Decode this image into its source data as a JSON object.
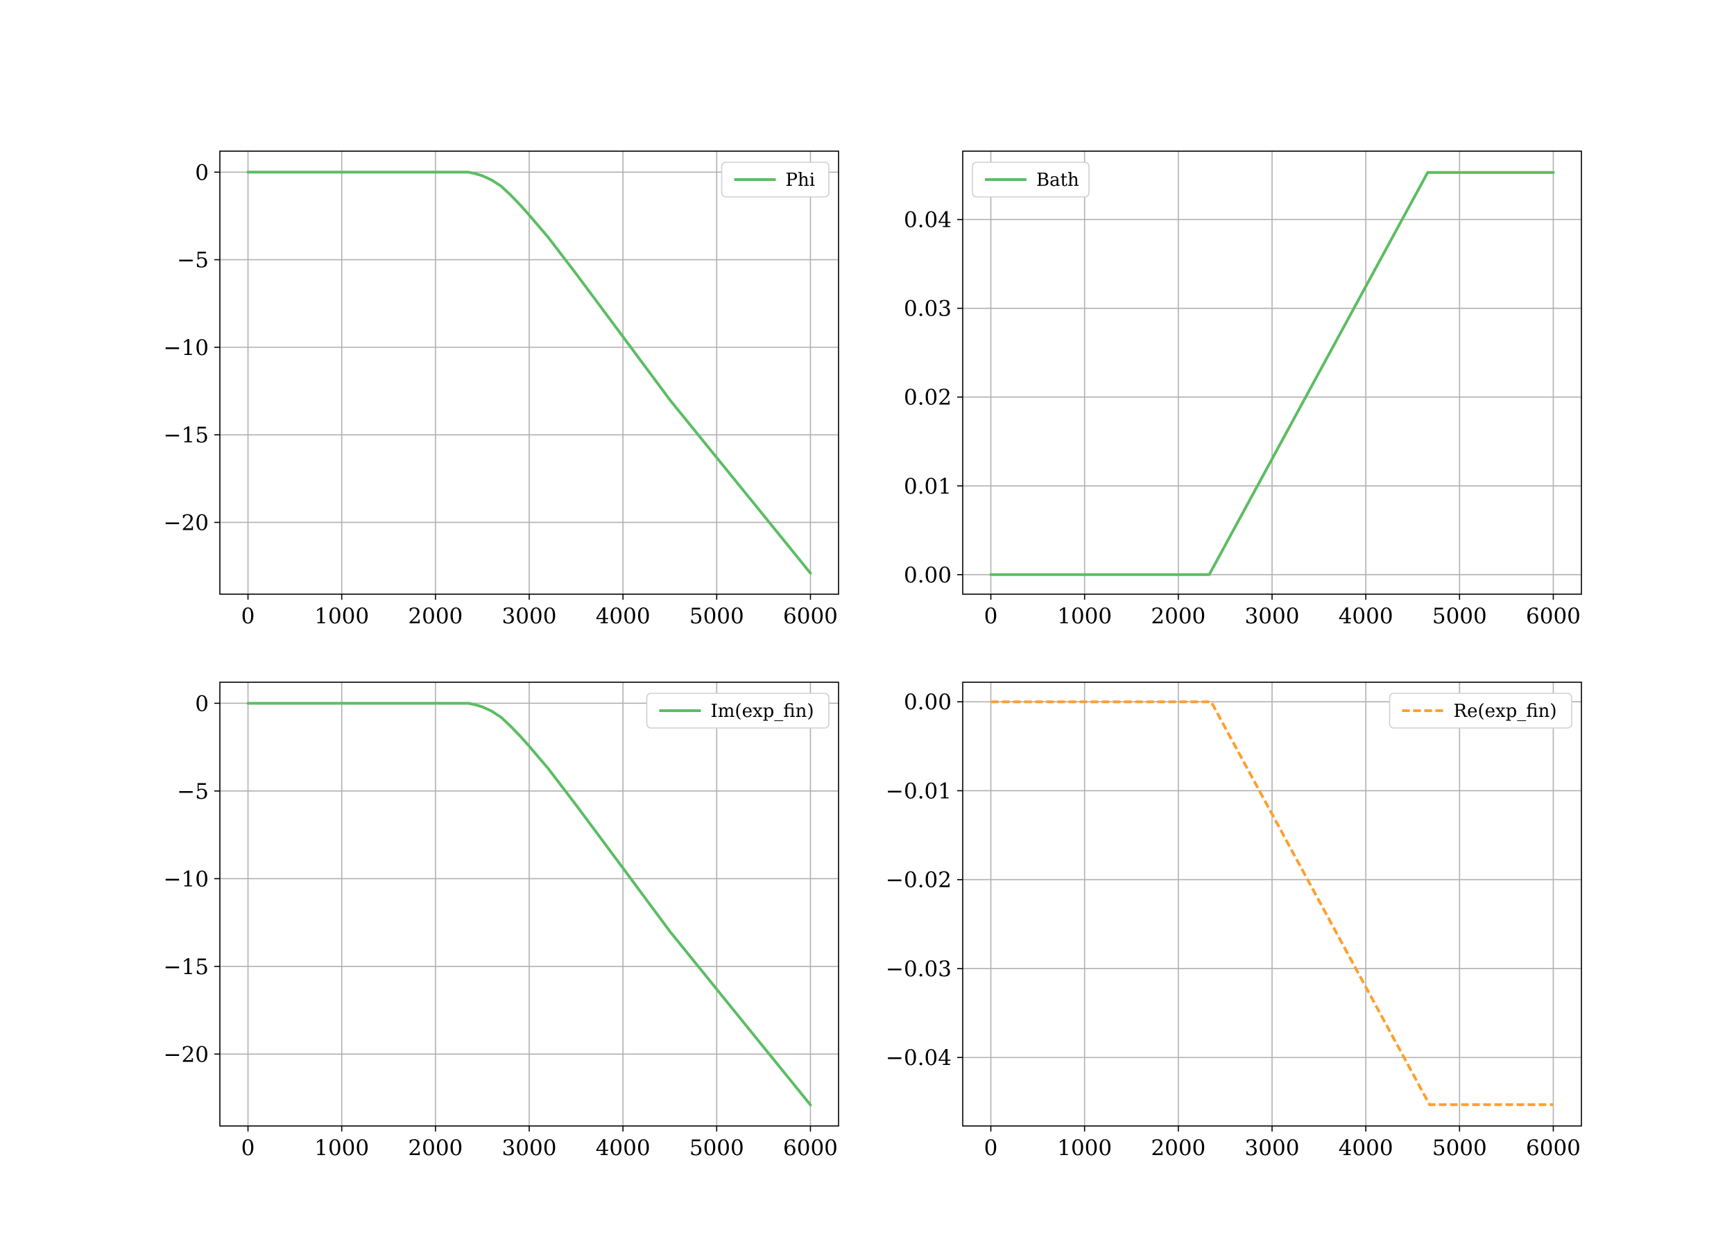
{
  "chart_data": [
    {
      "type": "line",
      "xlim": [
        -300,
        6300
      ],
      "ylim": [
        -24.1,
        1.2
      ],
      "xticks": [
        0,
        1000,
        2000,
        3000,
        4000,
        5000,
        6000
      ],
      "xtick_labels": [
        "0",
        "1000",
        "2000",
        "3000",
        "4000",
        "5000",
        "6000"
      ],
      "yticks": [
        0,
        -5,
        -10,
        -15,
        -20
      ],
      "ytick_labels": [
        "0",
        "−5",
        "−10",
        "−15",
        "−20"
      ],
      "grid": true,
      "legend_position": "top-right",
      "series": [
        {
          "name": "Phi",
          "color": "#5cbd63",
          "style": "solid",
          "x": [
            0,
            2350,
            2400,
            2500,
            2600,
            2700,
            2800,
            2900,
            3000,
            3200,
            3500,
            4000,
            4500,
            5000,
            5500,
            6000
          ],
          "y": [
            0,
            0,
            -0.05,
            -0.2,
            -0.45,
            -0.8,
            -1.3,
            -1.85,
            -2.45,
            -3.7,
            -5.8,
            -9.4,
            -13.0,
            -16.3,
            -19.6,
            -22.9
          ]
        }
      ]
    },
    {
      "type": "line",
      "xlim": [
        -300,
        6300
      ],
      "ylim": [
        -0.0022,
        0.0477
      ],
      "xticks": [
        0,
        1000,
        2000,
        3000,
        4000,
        5000,
        6000
      ],
      "xtick_labels": [
        "0",
        "1000",
        "2000",
        "3000",
        "4000",
        "5000",
        "6000"
      ],
      "yticks": [
        0.0,
        0.01,
        0.02,
        0.03,
        0.04
      ],
      "ytick_labels": [
        "0.00",
        "0.01",
        "0.02",
        "0.03",
        "0.04"
      ],
      "grid": true,
      "legend_position": "top-left",
      "series": [
        {
          "name": "Bath",
          "color": "#5cbd63",
          "style": "solid",
          "x": [
            0,
            2330,
            4660,
            6000
          ],
          "y": [
            0.0,
            0.0,
            0.0453,
            0.0453
          ]
        }
      ]
    },
    {
      "type": "line",
      "xlim": [
        -300,
        6300
      ],
      "ylim": [
        -24.1,
        1.2
      ],
      "xticks": [
        0,
        1000,
        2000,
        3000,
        4000,
        5000,
        6000
      ],
      "xtick_labels": [
        "0",
        "1000",
        "2000",
        "3000",
        "4000",
        "5000",
        "6000"
      ],
      "yticks": [
        0,
        -5,
        -10,
        -15,
        -20
      ],
      "ytick_labels": [
        "0",
        "−5",
        "−10",
        "−15",
        "−20"
      ],
      "grid": true,
      "legend_position": "top-right",
      "series": [
        {
          "name": "Im(exp_fin)",
          "color": "#5cbd63",
          "style": "solid",
          "x": [
            0,
            2350,
            2400,
            2500,
            2600,
            2700,
            2800,
            2900,
            3000,
            3200,
            3500,
            4000,
            4500,
            5000,
            5500,
            6000
          ],
          "y": [
            0,
            0,
            -0.05,
            -0.2,
            -0.45,
            -0.8,
            -1.3,
            -1.85,
            -2.45,
            -3.7,
            -5.8,
            -9.4,
            -13.0,
            -16.3,
            -19.6,
            -22.9
          ]
        }
      ]
    },
    {
      "type": "line",
      "xlim": [
        -300,
        6300
      ],
      "ylim": [
        -0.0477,
        0.0022
      ],
      "xticks": [
        0,
        1000,
        2000,
        3000,
        4000,
        5000,
        6000
      ],
      "xtick_labels": [
        "0",
        "1000",
        "2000",
        "3000",
        "4000",
        "5000",
        "6000"
      ],
      "yticks": [
        0.0,
        -0.01,
        -0.02,
        -0.03,
        -0.04
      ],
      "ytick_labels": [
        "0.00",
        "−0.01",
        "−0.02",
        "−0.03",
        "−0.04"
      ],
      "grid": true,
      "legend_position": "top-right",
      "series": [
        {
          "name": "Re(exp_fin)",
          "color": "#ff9f2e",
          "style": "dashed",
          "x": [
            0,
            2350,
            4680,
            6000
          ],
          "y": [
            0.0,
            0.0,
            -0.0453,
            -0.0453
          ]
        }
      ]
    }
  ]
}
